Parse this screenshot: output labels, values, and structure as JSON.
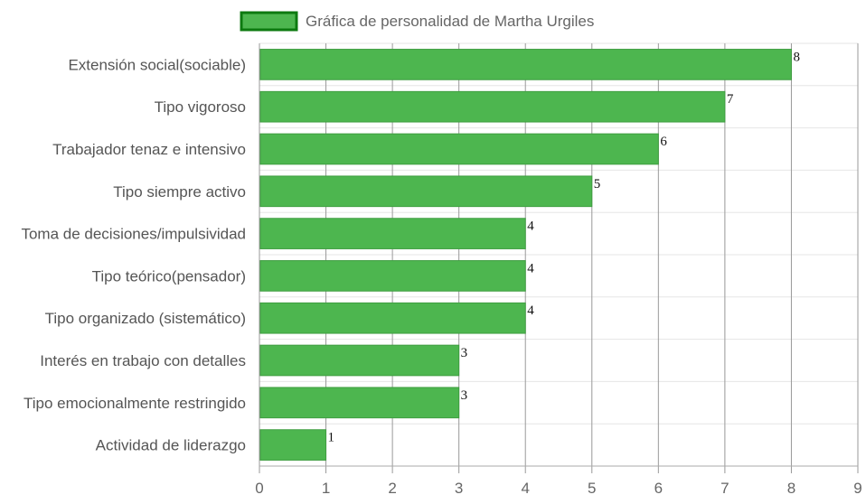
{
  "chart_data": {
    "type": "bar",
    "orientation": "horizontal",
    "categories": [
      "Extensión social(sociable)",
      "Tipo vigoroso",
      "Trabajador tenaz e intensivo",
      "Tipo siempre activo",
      "Toma de decisiones/impulsividad",
      "Tipo teórico(pensador)",
      "Tipo organizado (sistemático)",
      "Interés en trabajo con detalles",
      "Tipo emocionalmente restringido",
      "Actividad de liderazgo"
    ],
    "series": [
      {
        "name": "Gráfica de personalidad de Martha Urgiles",
        "values": [
          8,
          7,
          6,
          5,
          4,
          4,
          4,
          3,
          3,
          1
        ]
      }
    ],
    "xlim": [
      0,
      9
    ],
    "x_ticks": [
      "0",
      "1",
      "2",
      "3",
      "4",
      "5",
      "6",
      "7",
      "8",
      "9"
    ],
    "data_labels": [
      "8",
      "7",
      "6",
      "5",
      "4",
      "4",
      "4",
      "3",
      "3",
      "1"
    ],
    "legend_position": "top-center",
    "grid": true,
    "colors": {
      "bar_fill": "#4db64f",
      "bar_border": "#3f9e41",
      "legend_fill": "#4db64f",
      "legend_border": "#0d7a10",
      "grid_major": "#999999",
      "grid_minor": "#e6e6e6"
    }
  }
}
